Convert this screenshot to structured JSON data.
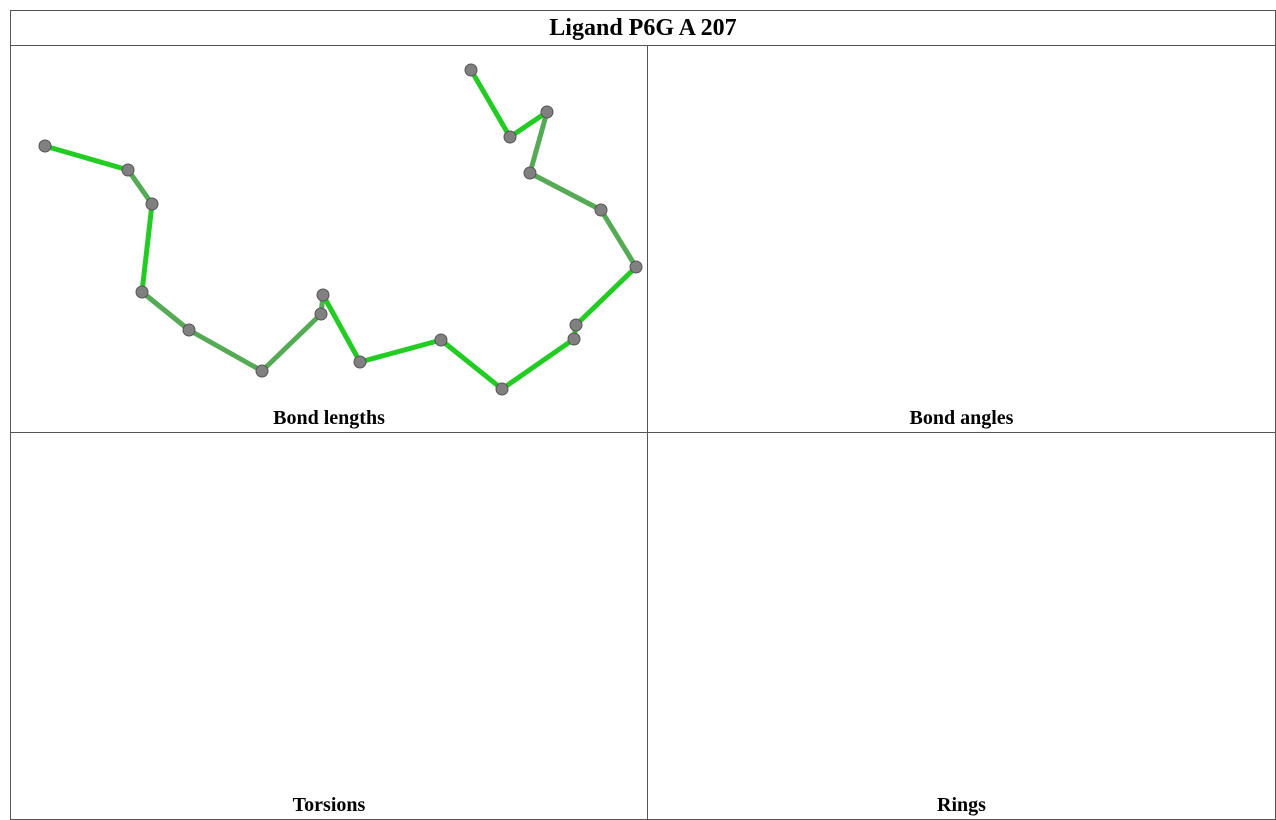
{
  "header": {
    "title": "Ligand P6G A 207"
  },
  "panels": [
    {
      "caption": "Bond lengths"
    },
    {
      "caption": "Bond angles"
    },
    {
      "caption": "Torsions"
    },
    {
      "caption": "Rings"
    }
  ]
}
